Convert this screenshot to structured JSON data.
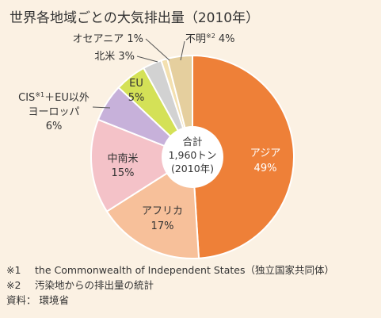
{
  "title": "世界各地域ごとの大気排出量（2010年）",
  "center": {
    "line1": "合計",
    "line2": "1,960トン",
    "line3": "(2010年)"
  },
  "chart_data": {
    "type": "pie",
    "title": "世界各地域ごとの大気排出量（2010年）",
    "total_label": "合計 1,960トン (2010年)",
    "slices": [
      {
        "label": "アジア",
        "value": 49,
        "value_label": "49%",
        "color": "#ee8038"
      },
      {
        "label": "アフリカ",
        "value": 17,
        "value_label": "17%",
        "color": "#f7c09a"
      },
      {
        "label": "中南米",
        "value": 15,
        "value_label": "15%",
        "color": "#f4c2c8"
      },
      {
        "label": "CIS※1＋EU以外ヨーロッパ",
        "value": 6,
        "value_label": "6%",
        "color": "#c7b1da"
      },
      {
        "label": "EU",
        "value": 5,
        "value_label": "5%",
        "color": "#d4e157"
      },
      {
        "label": "北米",
        "value": 3,
        "value_label": "3%",
        "color": "#d2d2d2"
      },
      {
        "label": "オセアニア",
        "value": 1,
        "value_label": "1%",
        "color": "#f3e0b0"
      },
      {
        "label": "不明※2",
        "value": 4,
        "value_label": "4%",
        "color": "#e5cf9e"
      }
    ]
  },
  "labels": {
    "asia_name": "アジア",
    "asia_pct": "49%",
    "africa_name": "アフリカ",
    "africa_pct": "17%",
    "latam_name": "中南米",
    "latam_pct": "15%",
    "cis_line1_a": "CIS",
    "cis_sup": "※1",
    "cis_line1_b": "＋EU以外",
    "cis_line2": "ヨーロッパ",
    "cis_pct": "6%",
    "eu_name": "EU",
    "eu_pct": "5%",
    "na_text": "北米 3%",
    "oceania_text": "オセアニア 1%",
    "unknown_name": "不明",
    "unknown_sup": "※2",
    "unknown_pct": "4%"
  },
  "notes": {
    "note1_mark": "※1",
    "note1_text": "the Commonwealth of Independent States（独立国家共同体）",
    "note2_mark": "※2",
    "note2_text": "汚染地からの排出量の統計",
    "source_label": "資料：",
    "source_text": "環境省"
  }
}
